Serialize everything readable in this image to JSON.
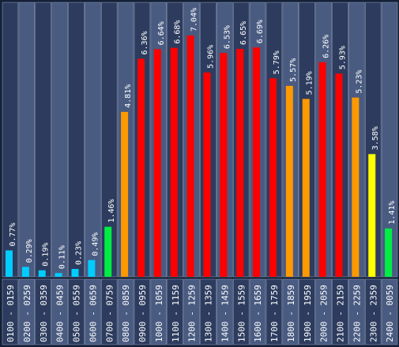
{
  "chart_data": {
    "type": "bar",
    "title": "",
    "xlabel": "",
    "ylabel": "",
    "ylim": [
      0,
      7.5
    ],
    "grid": false,
    "legend": "none",
    "value_suffix": "%",
    "categories": [
      "0100 - 0159",
      "0200 - 0259",
      "0300 - 0359",
      "0400 - 0459",
      "0500 - 0559",
      "0600 - 0659",
      "0700 - 0759",
      "0800 - 0859",
      "0900 - 0959",
      "1000 - 1059",
      "1100 - 1159",
      "1200 - 1259",
      "1300 - 1359",
      "1400 - 1459",
      "1500 - 1559",
      "1600 - 1659",
      "1700 - 1759",
      "1800 - 1859",
      "1900 - 1959",
      "2000 - 2059",
      "2100 - 2159",
      "2200 - 2259",
      "2300 - 2359",
      "2400 - 0059"
    ],
    "values": [
      0.77,
      0.29,
      0.19,
      0.11,
      0.23,
      0.49,
      1.46,
      4.81,
      6.36,
      6.64,
      6.68,
      7.04,
      5.96,
      6.53,
      6.65,
      6.69,
      5.79,
      5.57,
      5.19,
      6.26,
      5.93,
      5.23,
      3.58,
      1.41
    ],
    "colors": [
      "#00ccff",
      "#00ccff",
      "#00ccff",
      "#00ccff",
      "#00ccff",
      "#00ccff",
      "#00ee44",
      "#ff9900",
      "#ff0000",
      "#ff0000",
      "#ff0000",
      "#ff0000",
      "#ff0000",
      "#ff0000",
      "#ff0000",
      "#ff0000",
      "#ff0000",
      "#ff9900",
      "#ff9900",
      "#ff0000",
      "#ff0000",
      "#ff9900",
      "#ffff00",
      "#00ee44"
    ],
    "column_colors": [
      "#2d3c5e",
      "#4a5b81"
    ],
    "frame_color": "#8896b4",
    "background": "#142036"
  }
}
